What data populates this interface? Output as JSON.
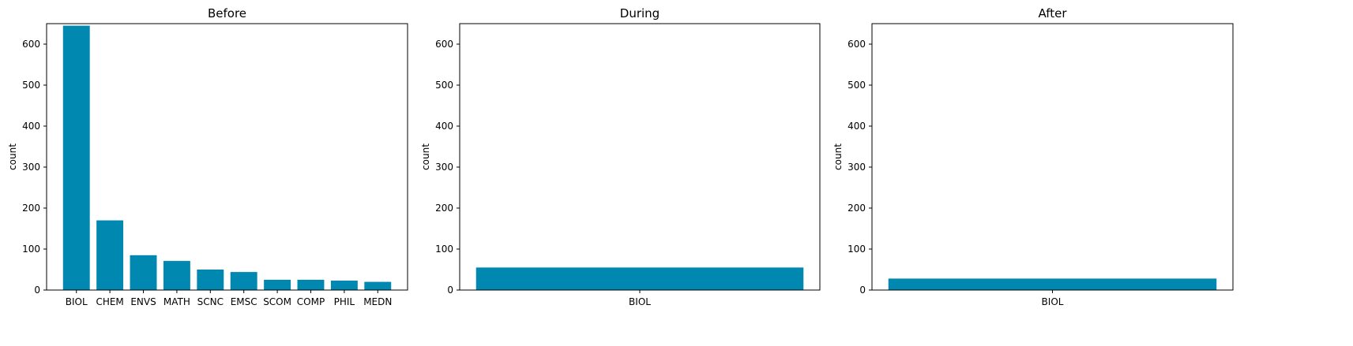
{
  "chart_data": [
    {
      "type": "bar",
      "title": "Before",
      "xlabel": "",
      "ylabel": "count",
      "ylim": [
        0,
        650
      ],
      "yticks": [
        0,
        100,
        200,
        300,
        400,
        500,
        600
      ],
      "categories": [
        "BIOL",
        "CHEM",
        "ENVS",
        "MATH",
        "SCNC",
        "EMSC",
        "SCOM",
        "COMP",
        "PHIL",
        "MEDN"
      ],
      "values": [
        645,
        170,
        85,
        71,
        50,
        44,
        25,
        25,
        23,
        20
      ],
      "color": "#0088B0"
    },
    {
      "type": "bar",
      "title": "During",
      "xlabel": "",
      "ylabel": "count",
      "ylim": [
        0,
        650
      ],
      "yticks": [
        0,
        100,
        200,
        300,
        400,
        500,
        600
      ],
      "categories": [
        "BIOL"
      ],
      "values": [
        55
      ],
      "color": "#0088B0"
    },
    {
      "type": "bar",
      "title": "After",
      "xlabel": "",
      "ylabel": "count",
      "ylim": [
        0,
        650
      ],
      "yticks": [
        0,
        100,
        200,
        300,
        400,
        500,
        600
      ],
      "categories": [
        "BIOL"
      ],
      "values": [
        28
      ],
      "color": "#0088B0"
    }
  ]
}
